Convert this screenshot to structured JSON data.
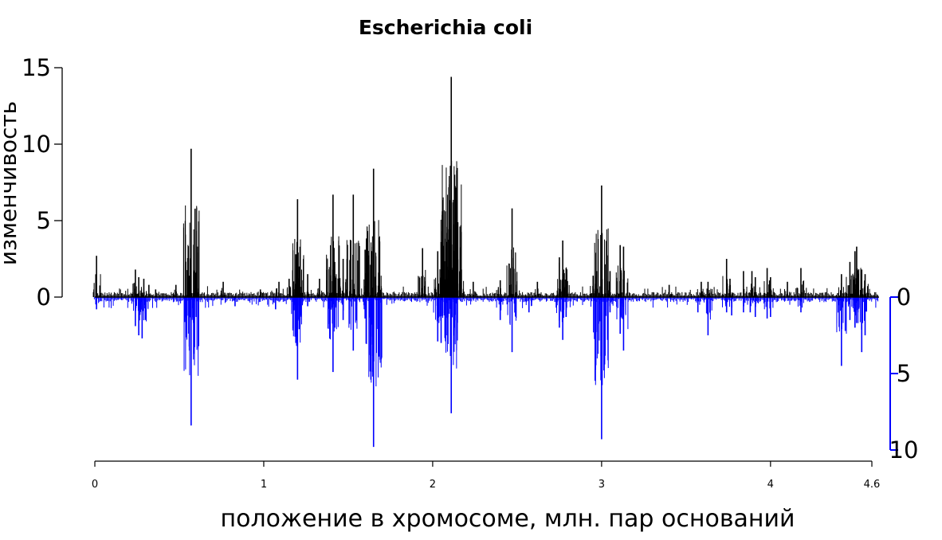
{
  "chart_data": {
    "type": "line",
    "title": "Escherichia coli",
    "xlabel": "положение в хромосоме, млн. пар оснований",
    "ylabel": "изменчивость",
    "xlim": [
      0,
      4.6
    ],
    "x_ticks": [
      0,
      1,
      2,
      3,
      4,
      4.6
    ],
    "x_tick_labels": [
      "0",
      "1",
      "2",
      "3",
      "4",
      "4.6"
    ],
    "ylim_upper": [
      0,
      15
    ],
    "y_ticks_upper": [
      0,
      5,
      10,
      15
    ],
    "y_tick_labels_upper": [
      "0",
      "5",
      "10",
      "15"
    ],
    "ylim_lower": [
      0,
      10
    ],
    "y_ticks_lower": [
      0,
      5,
      10
    ],
    "y_tick_labels_lower": [
      "0",
      "5",
      "10"
    ],
    "grid": false,
    "colors": {
      "upper": "#000000",
      "lower": "#0000ff"
    },
    "series": [
      {
        "color": "#000000",
        "direction": "up",
        "peaks": [
          [
            0.01,
            2.7
          ],
          [
            0.24,
            1.8
          ],
          [
            0.26,
            1.3
          ],
          [
            0.29,
            1.2
          ],
          [
            0.32,
            0.8
          ],
          [
            0.36,
            0.5
          ],
          [
            0.48,
            0.8
          ],
          [
            0.56,
            1.4
          ],
          [
            0.57,
            9.7
          ],
          [
            0.6,
            1.6
          ],
          [
            0.76,
            1.0
          ],
          [
            0.98,
            0.5
          ],
          [
            1.09,
            1.0
          ],
          [
            1.15,
            1.2
          ],
          [
            1.19,
            2.8
          ],
          [
            1.2,
            6.4
          ],
          [
            1.21,
            2.0
          ],
          [
            1.26,
            1.5
          ],
          [
            1.33,
            1.2
          ],
          [
            1.41,
            6.7
          ],
          [
            1.42,
            2.3
          ],
          [
            1.47,
            2.5
          ],
          [
            1.53,
            6.7
          ],
          [
            1.6,
            3.1
          ],
          [
            1.64,
            3.0
          ],
          [
            1.65,
            8.4
          ],
          [
            1.68,
            1.6
          ],
          [
            1.94,
            3.2
          ],
          [
            2.03,
            3.0
          ],
          [
            2.05,
            3.6
          ],
          [
            2.08,
            4.2
          ],
          [
            2.11,
            14.4
          ],
          [
            2.13,
            8.0
          ],
          [
            2.17,
            1.8
          ],
          [
            2.24,
            1.0
          ],
          [
            2.4,
            1.1
          ],
          [
            2.47,
            5.8
          ],
          [
            2.62,
            1.0
          ],
          [
            2.75,
            2.6
          ],
          [
            2.77,
            3.7
          ],
          [
            2.79,
            1.9
          ],
          [
            2.95,
            1.4
          ],
          [
            2.97,
            1.7
          ],
          [
            3.0,
            7.3
          ],
          [
            3.05,
            1.7
          ],
          [
            3.11,
            3.4
          ],
          [
            3.13,
            3.3
          ],
          [
            3.4,
            0.8
          ],
          [
            3.59,
            1.0
          ],
          [
            3.63,
            1.0
          ],
          [
            3.74,
            2.5
          ],
          [
            3.76,
            1.2
          ],
          [
            3.84,
            1.7
          ],
          [
            3.89,
            1.7
          ],
          [
            3.91,
            1.3
          ],
          [
            3.98,
            1.9
          ],
          [
            4.0,
            1.3
          ],
          [
            4.1,
            1.0
          ],
          [
            4.18,
            1.9
          ],
          [
            4.42,
            1.5
          ],
          [
            4.47,
            2.3
          ],
          [
            4.5,
            3.0
          ],
          [
            4.51,
            3.3
          ],
          [
            4.54,
            1.8
          ],
          [
            4.56,
            1.5
          ]
        ]
      },
      {
        "color": "#0000ff",
        "direction": "down",
        "peaks": [
          [
            0.01,
            0.8
          ],
          [
            0.24,
            1.9
          ],
          [
            0.26,
            2.5
          ],
          [
            0.28,
            2.7
          ],
          [
            0.3,
            1.5
          ],
          [
            0.56,
            3.5
          ],
          [
            0.57,
            8.4
          ],
          [
            0.6,
            1.3
          ],
          [
            0.83,
            0.6
          ],
          [
            1.07,
            0.8
          ],
          [
            1.19,
            3.0
          ],
          [
            1.2,
            5.4
          ],
          [
            1.21,
            2.1
          ],
          [
            1.26,
            0.6
          ],
          [
            1.41,
            4.9
          ],
          [
            1.42,
            2.0
          ],
          [
            1.47,
            1.5
          ],
          [
            1.53,
            3.5
          ],
          [
            1.6,
            1.4
          ],
          [
            1.64,
            1.8
          ],
          [
            1.65,
            9.8
          ],
          [
            1.68,
            1.3
          ],
          [
            2.03,
            2.9
          ],
          [
            2.05,
            3.0
          ],
          [
            2.08,
            2.5
          ],
          [
            2.11,
            7.6
          ],
          [
            2.13,
            2.0
          ],
          [
            2.4,
            1.5
          ],
          [
            2.47,
            3.6
          ],
          [
            2.57,
            1.0
          ],
          [
            2.75,
            2.0
          ],
          [
            2.77,
            2.8
          ],
          [
            2.79,
            1.3
          ],
          [
            3.0,
            9.3
          ],
          [
            3.05,
            1.0
          ],
          [
            3.11,
            2.4
          ],
          [
            3.13,
            3.5
          ],
          [
            3.57,
            1.0
          ],
          [
            3.63,
            2.5
          ],
          [
            3.74,
            1.0
          ],
          [
            3.77,
            1.2
          ],
          [
            3.84,
            1.0
          ],
          [
            3.88,
            1.0
          ],
          [
            3.91,
            1.3
          ],
          [
            3.98,
            1.4
          ],
          [
            4.0,
            1.3
          ],
          [
            4.18,
            1.0
          ],
          [
            4.42,
            4.5
          ],
          [
            4.47,
            1.5
          ],
          [
            4.5,
            2.0
          ],
          [
            4.51,
            1.7
          ],
          [
            4.54,
            3.6
          ],
          [
            4.56,
            2.5
          ]
        ]
      }
    ]
  }
}
